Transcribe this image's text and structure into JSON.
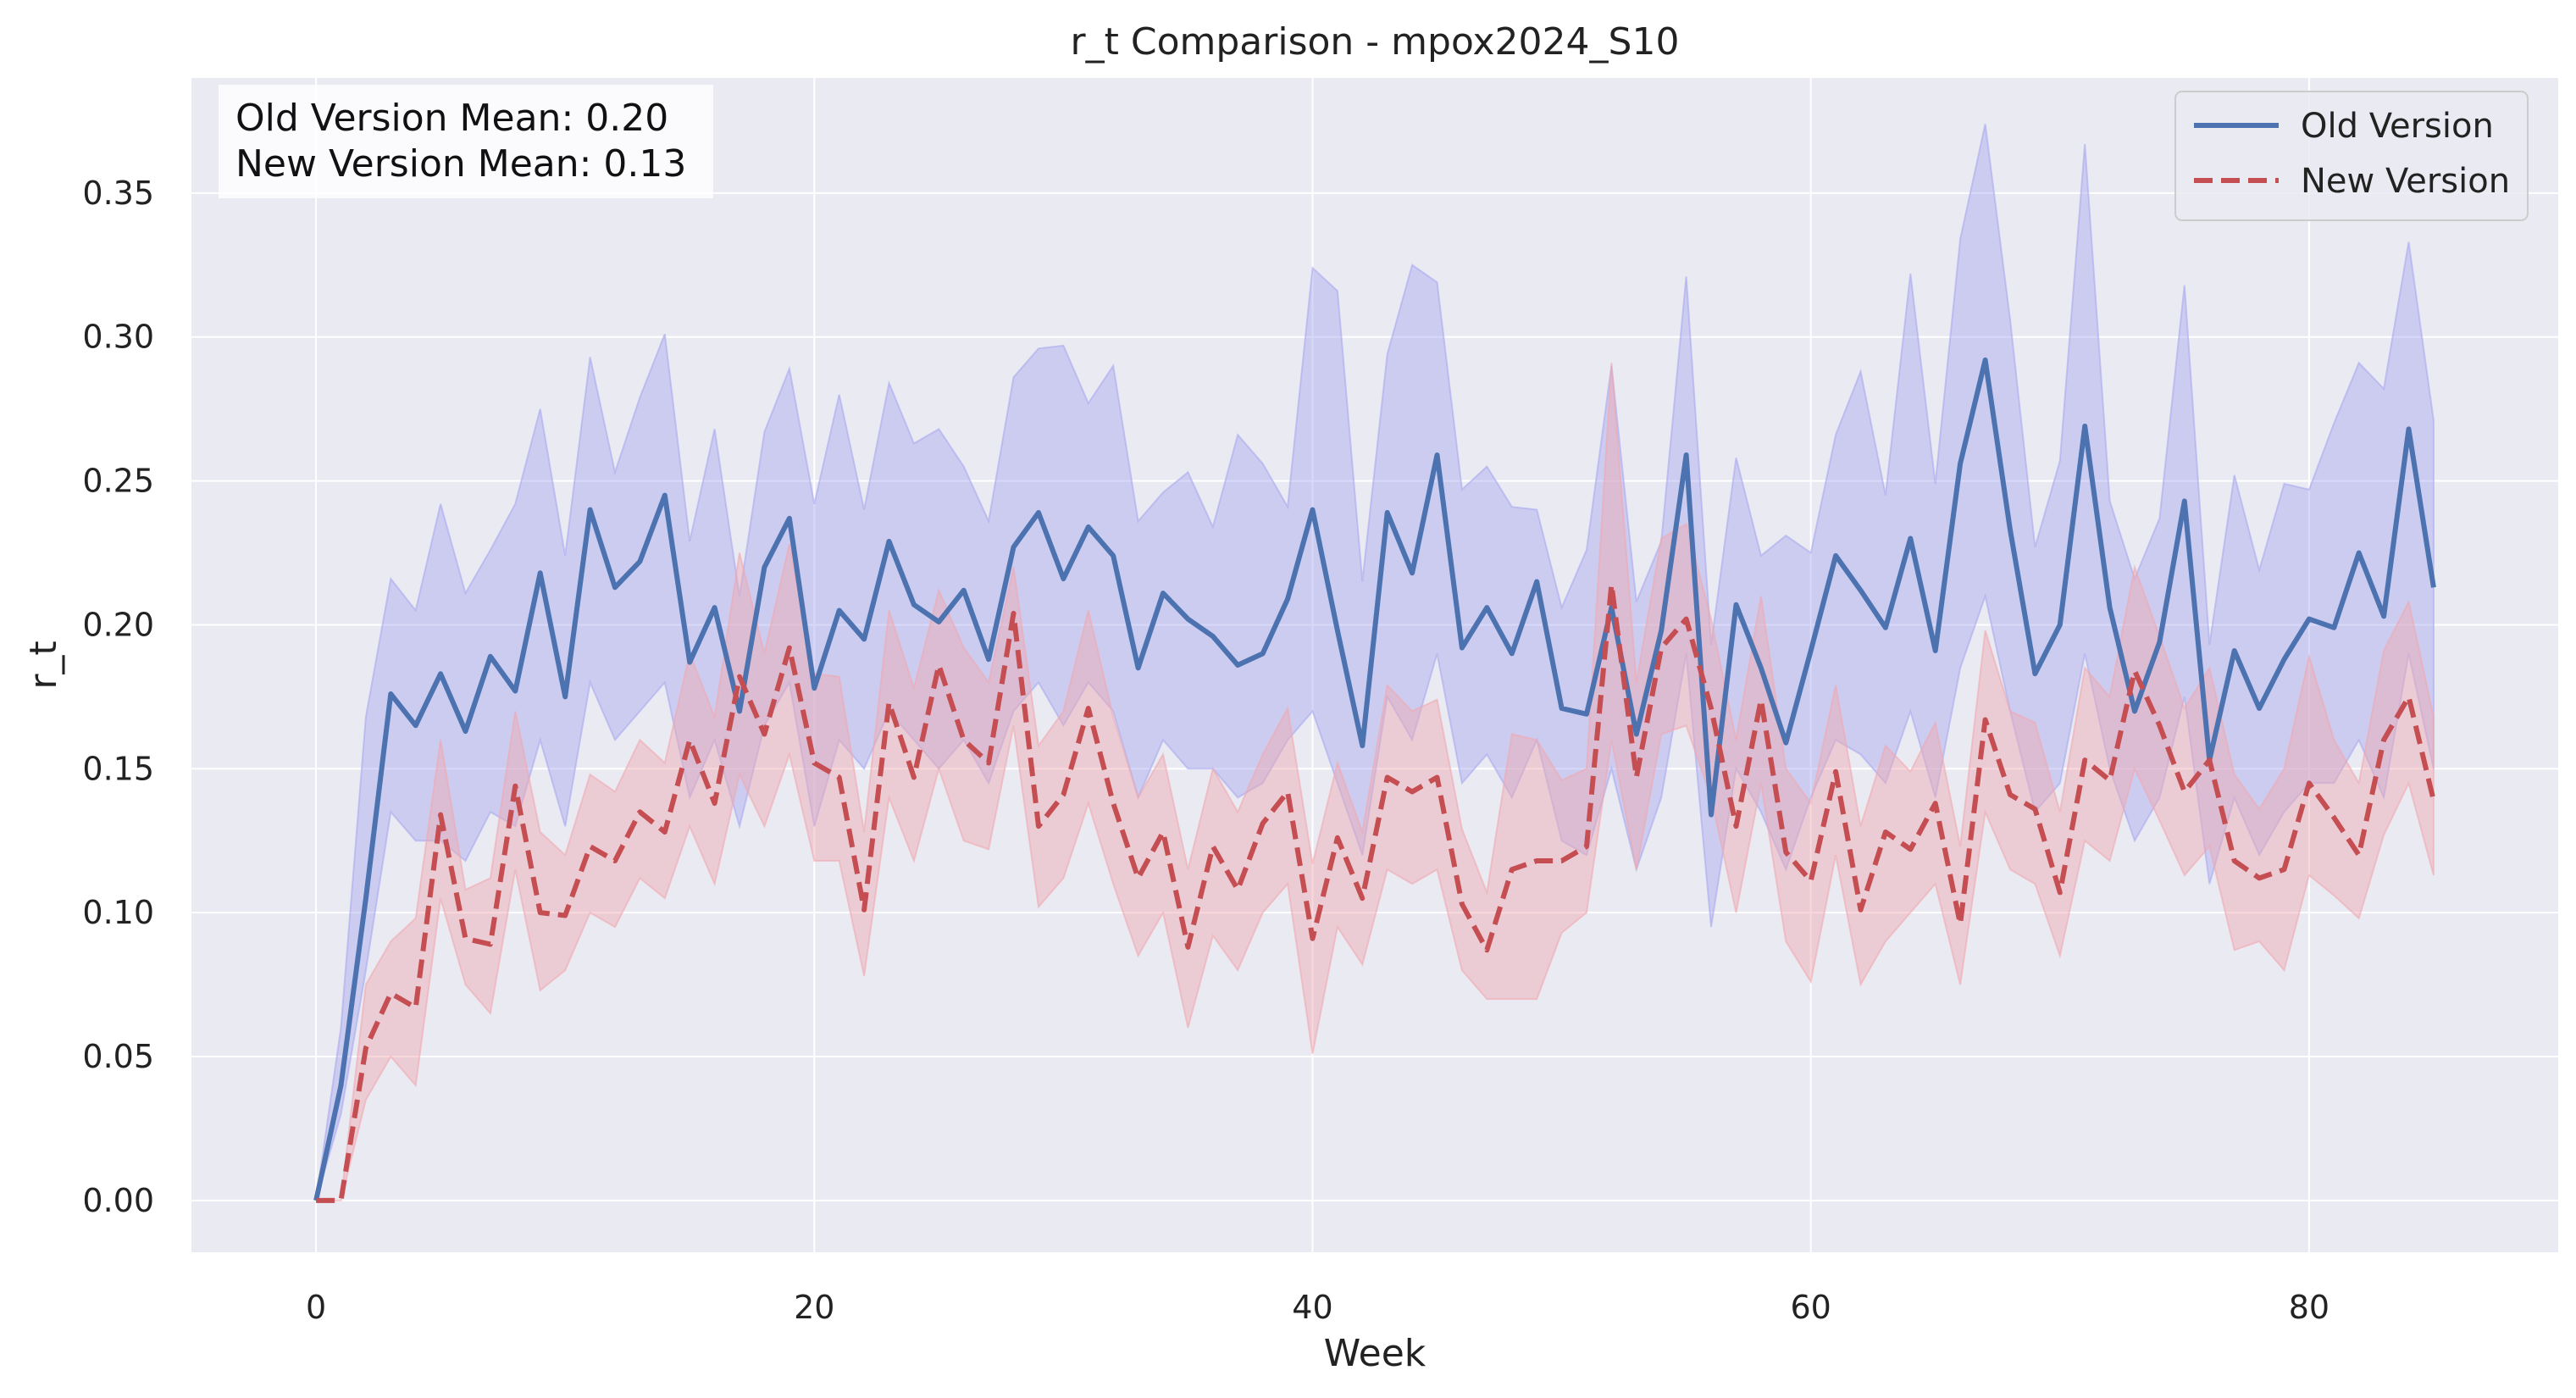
{
  "chart_data": {
    "type": "line",
    "title": "r_t Comparison - mpox2024_S10",
    "xlabel": "Week",
    "ylabel": "r_t",
    "xlim": [
      -5,
      90
    ],
    "ylim": [
      -0.018,
      0.39
    ],
    "x_ticks": [
      0,
      20,
      40,
      60,
      80
    ],
    "y_ticks": [
      0.0,
      0.05,
      0.1,
      0.15,
      0.2,
      0.25,
      0.3,
      0.35
    ],
    "grid": true,
    "legend_position": "top-right",
    "annotation": {
      "line1": "Old Version Mean: 0.20",
      "line2": "New Version Mean: 0.13",
      "position": "top-left"
    },
    "x": [
      0,
      1,
      2,
      3,
      4,
      5,
      6,
      7,
      8,
      9,
      10,
      11,
      12,
      13,
      14,
      15,
      16,
      17,
      18,
      19,
      20,
      21,
      22,
      23,
      24,
      25,
      26,
      27,
      28,
      29,
      30,
      31,
      32,
      33,
      34,
      35,
      36,
      37,
      38,
      39,
      40,
      41,
      42,
      43,
      44,
      45,
      46,
      47,
      48,
      49,
      50,
      51,
      52,
      53,
      54,
      55,
      56,
      57,
      58,
      59,
      60,
      61,
      62,
      63,
      64,
      65,
      66,
      67,
      68,
      69,
      70,
      71,
      72,
      73,
      74,
      75,
      76,
      77,
      78,
      79,
      80,
      81,
      82,
      83,
      84,
      85
    ],
    "series": [
      {
        "name": "Old Version",
        "color": "#4c72b0",
        "band_color": "#a8a8f0",
        "style": "solid",
        "values": [
          0.0,
          0.04,
          0.105,
          0.176,
          0.165,
          0.183,
          0.163,
          0.189,
          0.177,
          0.218,
          0.175,
          0.24,
          0.213,
          0.222,
          0.245,
          0.187,
          0.206,
          0.17,
          0.22,
          0.237,
          0.178,
          0.205,
          0.195,
          0.229,
          0.207,
          0.201,
          0.212,
          0.188,
          0.227,
          0.239,
          0.216,
          0.234,
          0.224,
          0.185,
          0.211,
          0.202,
          0.196,
          0.186,
          0.19,
          0.209,
          0.24,
          0.198,
          0.158,
          0.239,
          0.218,
          0.259,
          0.192,
          0.206,
          0.19,
          0.215,
          0.171,
          0.169,
          0.206,
          0.162,
          0.198,
          0.259,
          0.134,
          0.207,
          0.185,
          0.159,
          0.191,
          0.224,
          0.212,
          0.199,
          0.23,
          0.191,
          0.256,
          0.292,
          0.233,
          0.183,
          0.2,
          0.269,
          0.206,
          0.17,
          0.194,
          0.243,
          0.153,
          0.191,
          0.171,
          0.188,
          0.202,
          0.199,
          0.225,
          0.203,
          0.268,
          0.213
        ],
        "lower": [
          0.0,
          0.03,
          0.08,
          0.135,
          0.125,
          0.125,
          0.118,
          0.135,
          0.13,
          0.16,
          0.13,
          0.18,
          0.16,
          0.17,
          0.18,
          0.14,
          0.16,
          0.13,
          0.165,
          0.18,
          0.13,
          0.16,
          0.15,
          0.17,
          0.16,
          0.15,
          0.16,
          0.145,
          0.17,
          0.18,
          0.165,
          0.18,
          0.17,
          0.14,
          0.16,
          0.15,
          0.15,
          0.14,
          0.145,
          0.16,
          0.17,
          0.145,
          0.12,
          0.175,
          0.16,
          0.19,
          0.145,
          0.155,
          0.14,
          0.16,
          0.125,
          0.12,
          0.15,
          0.115,
          0.14,
          0.19,
          0.095,
          0.15,
          0.135,
          0.115,
          0.14,
          0.16,
          0.155,
          0.145,
          0.17,
          0.14,
          0.185,
          0.21,
          0.17,
          0.135,
          0.145,
          0.19,
          0.15,
          0.125,
          0.14,
          0.175,
          0.11,
          0.14,
          0.12,
          0.135,
          0.145,
          0.145,
          0.16,
          0.14,
          0.19,
          0.15
        ],
        "upper": [
          0.0,
          0.06,
          0.168,
          0.216,
          0.205,
          0.242,
          0.211,
          0.226,
          0.242,
          0.275,
          0.224,
          0.293,
          0.253,
          0.279,
          0.301,
          0.229,
          0.268,
          0.21,
          0.267,
          0.289,
          0.242,
          0.28,
          0.24,
          0.284,
          0.263,
          0.268,
          0.255,
          0.236,
          0.286,
          0.296,
          0.297,
          0.277,
          0.29,
          0.236,
          0.246,
          0.253,
          0.234,
          0.266,
          0.256,
          0.241,
          0.324,
          0.316,
          0.215,
          0.294,
          0.325,
          0.319,
          0.247,
          0.255,
          0.241,
          0.24,
          0.206,
          0.226,
          0.29,
          0.208,
          0.229,
          0.321,
          0.193,
          0.258,
          0.224,
          0.231,
          0.225,
          0.266,
          0.288,
          0.245,
          0.322,
          0.249,
          0.334,
          0.374,
          0.306,
          0.227,
          0.257,
          0.367,
          0.243,
          0.216,
          0.237,
          0.318,
          0.193,
          0.252,
          0.219,
          0.249,
          0.247,
          0.27,
          0.291,
          0.282,
          0.333,
          0.271
        ]
      },
      {
        "name": "New Version",
        "color": "#c44e52",
        "band_color": "#f0a8b0",
        "style": "dashed",
        "values": [
          0.0,
          0.0,
          0.053,
          0.072,
          0.067,
          0.134,
          0.091,
          0.089,
          0.144,
          0.1,
          0.099,
          0.123,
          0.118,
          0.135,
          0.128,
          0.16,
          0.138,
          0.182,
          0.162,
          0.192,
          0.152,
          0.147,
          0.101,
          0.173,
          0.147,
          0.186,
          0.16,
          0.152,
          0.204,
          0.13,
          0.141,
          0.171,
          0.138,
          0.112,
          0.128,
          0.088,
          0.123,
          0.108,
          0.131,
          0.142,
          0.091,
          0.126,
          0.105,
          0.147,
          0.142,
          0.147,
          0.103,
          0.087,
          0.115,
          0.118,
          0.118,
          0.123,
          0.214,
          0.147,
          0.192,
          0.202,
          0.171,
          0.13,
          0.174,
          0.121,
          0.111,
          0.149,
          0.101,
          0.128,
          0.122,
          0.138,
          0.096,
          0.167,
          0.141,
          0.136,
          0.107,
          0.153,
          0.146,
          0.184,
          0.165,
          0.142,
          0.153,
          0.118,
          0.112,
          0.115,
          0.145,
          0.133,
          0.12,
          0.16,
          0.175,
          0.139
        ],
        "lower": [
          0.0,
          0.0,
          0.035,
          0.05,
          0.04,
          0.105,
          0.075,
          0.065,
          0.115,
          0.073,
          0.08,
          0.1,
          0.095,
          0.112,
          0.105,
          0.13,
          0.11,
          0.148,
          0.13,
          0.155,
          0.118,
          0.118,
          0.078,
          0.14,
          0.118,
          0.15,
          0.125,
          0.122,
          0.165,
          0.102,
          0.112,
          0.138,
          0.11,
          0.085,
          0.1,
          0.06,
          0.092,
          0.08,
          0.1,
          0.11,
          0.051,
          0.095,
          0.082,
          0.115,
          0.11,
          0.115,
          0.08,
          0.07,
          0.07,
          0.07,
          0.093,
          0.1,
          0.16,
          0.115,
          0.162,
          0.165,
          0.14,
          0.1,
          0.145,
          0.09,
          0.076,
          0.12,
          0.075,
          0.09,
          0.1,
          0.11,
          0.075,
          0.135,
          0.115,
          0.11,
          0.085,
          0.125,
          0.118,
          0.15,
          0.132,
          0.113,
          0.123,
          0.087,
          0.09,
          0.08,
          0.113,
          0.106,
          0.098,
          0.127,
          0.145,
          0.113
        ],
        "upper": [
          0.0,
          0.0,
          0.075,
          0.09,
          0.098,
          0.16,
          0.108,
          0.112,
          0.17,
          0.128,
          0.12,
          0.148,
          0.142,
          0.16,
          0.152,
          0.19,
          0.168,
          0.225,
          0.19,
          0.228,
          0.183,
          0.182,
          0.128,
          0.205,
          0.178,
          0.212,
          0.192,
          0.18,
          0.22,
          0.158,
          0.17,
          0.205,
          0.168,
          0.14,
          0.155,
          0.115,
          0.15,
          0.135,
          0.155,
          0.171,
          0.117,
          0.152,
          0.128,
          0.179,
          0.17,
          0.174,
          0.129,
          0.107,
          0.162,
          0.16,
          0.146,
          0.15,
          0.291,
          0.18,
          0.23,
          0.235,
          0.202,
          0.16,
          0.21,
          0.15,
          0.138,
          0.179,
          0.13,
          0.158,
          0.149,
          0.166,
          0.123,
          0.198,
          0.17,
          0.166,
          0.135,
          0.185,
          0.175,
          0.22,
          0.196,
          0.171,
          0.185,
          0.148,
          0.136,
          0.15,
          0.189,
          0.16,
          0.145,
          0.191,
          0.208,
          0.168
        ]
      }
    ]
  }
}
